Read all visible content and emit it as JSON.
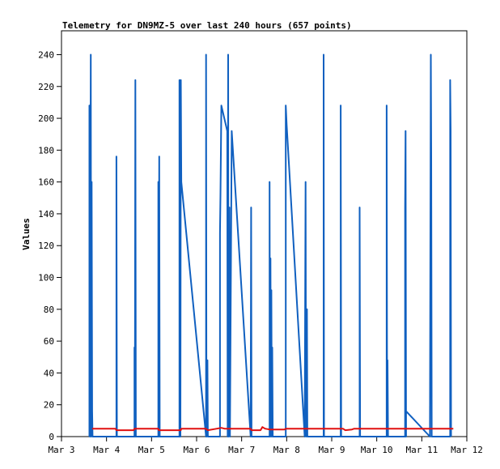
{
  "chart_data": {
    "type": "line",
    "title": "Telemetry for DN9MZ-5 over last 240 hours (657 points)",
    "xlabel": "",
    "ylabel": "Values",
    "ylim": [
      0,
      255
    ],
    "yticks": [
      0,
      20,
      40,
      60,
      80,
      100,
      120,
      140,
      160,
      180,
      200,
      220,
      240
    ],
    "xlim_day": [
      3.0,
      12.0
    ],
    "xticks": [
      {
        "day": 3,
        "label": "Mar 3"
      },
      {
        "day": 4,
        "label": "Mar 4"
      },
      {
        "day": 5,
        "label": "Mar 5"
      },
      {
        "day": 6,
        "label": "Mar 6"
      },
      {
        "day": 7,
        "label": "Mar 7"
      },
      {
        "day": 8,
        "label": "Mar 8"
      },
      {
        "day": 9,
        "label": "Mar 9"
      },
      {
        "day": 10,
        "label": "Mar 10"
      },
      {
        "day": 11,
        "label": "Mar 11"
      },
      {
        "day": 12,
        "label": "Mar 12"
      }
    ],
    "grid": false,
    "legend": "none",
    "series": [
      {
        "color": "#1060c0",
        "points": [
          [
            3.62,
            0
          ],
          [
            3.62,
            208
          ],
          [
            3.63,
            0
          ],
          [
            3.65,
            240
          ],
          [
            3.66,
            0
          ],
          [
            3.67,
            160
          ],
          [
            3.68,
            16
          ],
          [
            3.69,
            0
          ],
          [
            4.22,
            0
          ],
          [
            4.22,
            176
          ],
          [
            4.23,
            0
          ],
          [
            4.62,
            0
          ],
          [
            4.62,
            56
          ],
          [
            4.63,
            0
          ],
          [
            4.64,
            224
          ],
          [
            4.65,
            0
          ],
          [
            5.15,
            0
          ],
          [
            5.15,
            160
          ],
          [
            5.16,
            0
          ],
          [
            5.17,
            176
          ],
          [
            5.18,
            0
          ],
          [
            5.62,
            0
          ],
          [
            5.62,
            224
          ],
          [
            5.64,
            0
          ],
          [
            5.65,
            224
          ],
          [
            5.66,
            160
          ],
          [
            6.21,
            0
          ],
          [
            6.21,
            240
          ],
          [
            6.22,
            0
          ],
          [
            6.24,
            48
          ],
          [
            6.25,
            0
          ],
          [
            6.52,
            0
          ],
          [
            6.52,
            128
          ],
          [
            6.53,
            152
          ],
          [
            6.55,
            208
          ],
          [
            6.68,
            192
          ],
          [
            6.69,
            0
          ],
          [
            6.7,
            240
          ],
          [
            6.71,
            0
          ],
          [
            6.73,
            144
          ],
          [
            6.74,
            0
          ],
          [
            6.78,
            192
          ],
          [
            7.2,
            0
          ],
          [
            7.21,
            144
          ],
          [
            7.22,
            0
          ],
          [
            7.62,
            0
          ],
          [
            7.62,
            160
          ],
          [
            7.63,
            0
          ],
          [
            7.64,
            112
          ],
          [
            7.65,
            0
          ],
          [
            7.66,
            92
          ],
          [
            7.67,
            0
          ],
          [
            7.68,
            56
          ],
          [
            7.69,
            0
          ],
          [
            7.98,
            0
          ],
          [
            7.98,
            208
          ],
          [
            8.0,
            196
          ],
          [
            8.4,
            0
          ],
          [
            8.42,
            160
          ],
          [
            8.43,
            0
          ],
          [
            8.45,
            80
          ],
          [
            8.46,
            0
          ],
          [
            8.82,
            0
          ],
          [
            8.82,
            240
          ],
          [
            8.83,
            0
          ],
          [
            9.2,
            0
          ],
          [
            9.2,
            208
          ],
          [
            9.21,
            0
          ],
          [
            9.62,
            0
          ],
          [
            9.62,
            144
          ],
          [
            9.63,
            0
          ],
          [
            10.22,
            0
          ],
          [
            10.22,
            208
          ],
          [
            10.23,
            0
          ],
          [
            10.24,
            48
          ],
          [
            10.25,
            0
          ],
          [
            10.63,
            0
          ],
          [
            10.63,
            144
          ],
          [
            10.64,
            192
          ],
          [
            10.65,
            0
          ],
          [
            10.65,
            16
          ],
          [
            11.18,
            0
          ],
          [
            11.2,
            240
          ],
          [
            11.21,
            176
          ],
          [
            11.22,
            0
          ],
          [
            11.63,
            0
          ],
          [
            11.63,
            224
          ],
          [
            11.64,
            192
          ],
          [
            11.65,
            0
          ]
        ]
      },
      {
        "color": "#e01010",
        "points": [
          [
            3.68,
            5
          ],
          [
            4.2,
            5
          ],
          [
            4.22,
            4
          ],
          [
            4.6,
            4
          ],
          [
            4.62,
            5
          ],
          [
            5.15,
            5
          ],
          [
            5.16,
            4
          ],
          [
            5.65,
            4
          ],
          [
            5.66,
            5
          ],
          [
            6.2,
            5
          ],
          [
            6.25,
            4
          ],
          [
            6.45,
            5
          ],
          [
            6.55,
            5.5
          ],
          [
            6.62,
            5
          ],
          [
            7.2,
            5
          ],
          [
            7.22,
            4
          ],
          [
            7.42,
            4
          ],
          [
            7.46,
            6
          ],
          [
            7.52,
            5
          ],
          [
            7.62,
            4.5
          ],
          [
            7.95,
            4.5
          ],
          [
            7.98,
            5
          ],
          [
            9.25,
            5
          ],
          [
            9.3,
            4
          ],
          [
            9.45,
            4.5
          ],
          [
            9.5,
            5
          ],
          [
            10.2,
            5
          ],
          [
            11.7,
            5
          ]
        ]
      }
    ]
  }
}
